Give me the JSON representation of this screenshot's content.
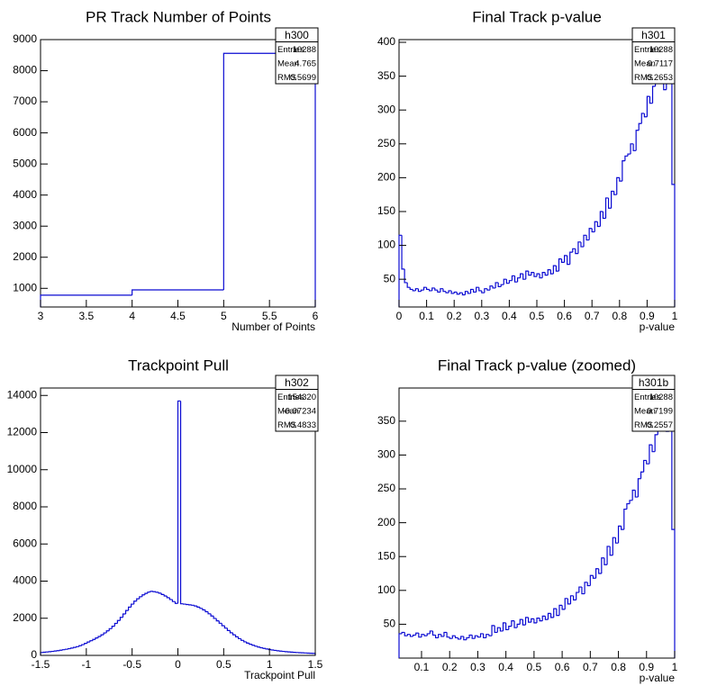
{
  "chart_data": [
    {
      "type": "histogram",
      "title": "PR Track Number of Points",
      "xlabel": "Number of Points",
      "bins": [
        3,
        4,
        5,
        6
      ],
      "values": [
        780,
        950,
        8558
      ],
      "color": "#0a0ad2",
      "xlim": [
        3,
        6
      ],
      "xticks": [
        3,
        3.5,
        4,
        4.5,
        5,
        5.5,
        6
      ],
      "ylim": [
        400,
        9000
      ],
      "yticks": [
        1000,
        2000,
        3000,
        4000,
        5000,
        6000,
        7000,
        8000,
        9000
      ],
      "stats": {
        "title": "h300",
        "rows": [
          [
            "Entries",
            10288
          ],
          [
            "Mean",
            4.765
          ],
          [
            "RMS",
            0.5699
          ]
        ]
      }
    },
    {
      "type": "histogram",
      "title": "Final Track p-value",
      "xlabel": "p-value",
      "bins": [
        0,
        0.01,
        0.02,
        0.03,
        0.04,
        0.05,
        0.06,
        0.07,
        0.08,
        0.09,
        0.1,
        0.11,
        0.12,
        0.13,
        0.14,
        0.15,
        0.16,
        0.17,
        0.18,
        0.19,
        0.2,
        0.21,
        0.22,
        0.23,
        0.24,
        0.25,
        0.26,
        0.27,
        0.28,
        0.29,
        0.3,
        0.31,
        0.32,
        0.33,
        0.34,
        0.35,
        0.36,
        0.37,
        0.38,
        0.39,
        0.4,
        0.41,
        0.42,
        0.43,
        0.44,
        0.45,
        0.46,
        0.47,
        0.48,
        0.49,
        0.5,
        0.51,
        0.52,
        0.53,
        0.54,
        0.55,
        0.56,
        0.57,
        0.58,
        0.59,
        0.6,
        0.61,
        0.62,
        0.63,
        0.64,
        0.65,
        0.66,
        0.67,
        0.68,
        0.69,
        0.7,
        0.71,
        0.72,
        0.73,
        0.74,
        0.75,
        0.76,
        0.77,
        0.78,
        0.79,
        0.8,
        0.81,
        0.82,
        0.83,
        0.84,
        0.85,
        0.86,
        0.87,
        0.88,
        0.89,
        0.9,
        0.91,
        0.92,
        0.93,
        0.94,
        0.95,
        0.96,
        0.97,
        0.98,
        0.99,
        1
      ],
      "values": [
        115,
        65,
        45,
        38,
        35,
        33,
        36,
        32,
        34,
        38,
        35,
        33,
        37,
        34,
        31,
        36,
        32,
        30,
        33,
        29,
        31,
        28,
        30,
        27,
        32,
        29,
        35,
        31,
        38,
        33,
        30,
        36,
        34,
        40,
        37,
        45,
        39,
        42,
        50,
        44,
        48,
        55,
        46,
        52,
        58,
        50,
        62,
        56,
        60,
        54,
        58,
        52,
        60,
        56,
        64,
        58,
        70,
        62,
        80,
        75,
        85,
        72,
        90,
        95,
        88,
        105,
        98,
        115,
        108,
        125,
        120,
        135,
        128,
        150,
        140,
        170,
        155,
        180,
        175,
        200,
        195,
        225,
        232,
        235,
        250,
        240,
        270,
        280,
        295,
        290,
        320,
        310,
        335,
        340,
        375,
        350,
        330,
        390,
        400,
        190
      ],
      "color": "#0a0ad2",
      "xlim": [
        0,
        1
      ],
      "xticks": [
        0,
        0.1,
        0.2,
        0.3,
        0.4,
        0.5,
        0.6,
        0.7,
        0.8,
        0.9,
        1
      ],
      "ylim": [
        9,
        404
      ],
      "yticks": [
        50,
        100,
        150,
        200,
        250,
        300,
        350,
        400
      ],
      "stats": {
        "title": "h301",
        "rows": [
          [
            "Entries",
            10288
          ],
          [
            "Mean",
            0.7117
          ],
          [
            "RMS",
            0.2653
          ]
        ]
      }
    },
    {
      "type": "histogram",
      "title": "Trackpoint Pull",
      "xlabel": "Trackpoint Pull",
      "bins": [
        -1.5,
        -1.47,
        -1.44,
        -1.41,
        -1.38,
        -1.35,
        -1.32,
        -1.29,
        -1.26,
        -1.23,
        -1.2,
        -1.17,
        -1.14,
        -1.11,
        -1.08,
        -1.05,
        -1.02,
        -0.99,
        -0.96,
        -0.93,
        -0.9,
        -0.87,
        -0.84,
        -0.81,
        -0.78,
        -0.75,
        -0.72,
        -0.69,
        -0.66,
        -0.63,
        -0.6,
        -0.57,
        -0.54,
        -0.51,
        -0.48,
        -0.45,
        -0.42,
        -0.39,
        -0.36,
        -0.33,
        -0.3,
        -0.27,
        -0.24,
        -0.21,
        -0.18,
        -0.15,
        -0.12,
        -0.09,
        -0.06,
        -0.03,
        0,
        0.03,
        0.06,
        0.09,
        0.12,
        0.15,
        0.18,
        0.21,
        0.24,
        0.27,
        0.3,
        0.33,
        0.36,
        0.39,
        0.42,
        0.45,
        0.48,
        0.51,
        0.54,
        0.57,
        0.6,
        0.63,
        0.66,
        0.69,
        0.72,
        0.75,
        0.78,
        0.81,
        0.84,
        0.87,
        0.9,
        0.93,
        0.96,
        0.99,
        1.02,
        1.05,
        1.08,
        1.11,
        1.14,
        1.17,
        1.2,
        1.23,
        1.26,
        1.29,
        1.32,
        1.35,
        1.38,
        1.41,
        1.44,
        1.47,
        1.5
      ],
      "values": [
        155,
        170,
        185,
        200,
        215,
        235,
        255,
        280,
        305,
        330,
        360,
        395,
        430,
        470,
        520,
        580,
        650,
        720,
        790,
        860,
        940,
        1020,
        1110,
        1210,
        1320,
        1440,
        1570,
        1720,
        1880,
        2050,
        2230,
        2420,
        2600,
        2760,
        2920,
        3050,
        3160,
        3260,
        3340,
        3410,
        3450,
        3430,
        3400,
        3350,
        3280,
        3200,
        3110,
        3010,
        2900,
        2800,
        13700,
        2780,
        2760,
        2740,
        2720,
        2700,
        2660,
        2600,
        2530,
        2450,
        2350,
        2240,
        2120,
        1990,
        1860,
        1730,
        1600,
        1470,
        1340,
        1220,
        1110,
        1000,
        900,
        810,
        730,
        660,
        600,
        545,
        495,
        450,
        410,
        375,
        345,
        315,
        290,
        270,
        250,
        232,
        215,
        200,
        188,
        176,
        165,
        155,
        146,
        138,
        130,
        123,
        116,
        110
      ],
      "color": "#0a0ad2",
      "xlim": [
        -1.5,
        1.5
      ],
      "xticks": [
        -1.5,
        -1,
        -0.5,
        0,
        0.5,
        1,
        1.5
      ],
      "ylim": [
        0,
        14400
      ],
      "yticks": [
        0,
        2000,
        4000,
        6000,
        8000,
        10000,
        12000,
        14000
      ],
      "stats": {
        "title": "h302",
        "rows": [
          [
            "Entries",
            154320
          ],
          [
            "Mean",
            -0.07234
          ],
          [
            "RMS",
            0.4833
          ]
        ]
      }
    },
    {
      "type": "histogram",
      "title": "Final Track p-value (zoomed)",
      "xlabel": "p-value",
      "bins": [
        0.02,
        0.03,
        0.04,
        0.05,
        0.06,
        0.07,
        0.08,
        0.09,
        0.1,
        0.11,
        0.12,
        0.13,
        0.14,
        0.15,
        0.16,
        0.17,
        0.18,
        0.19,
        0.2,
        0.21,
        0.22,
        0.23,
        0.24,
        0.25,
        0.26,
        0.27,
        0.28,
        0.29,
        0.3,
        0.31,
        0.32,
        0.33,
        0.34,
        0.35,
        0.36,
        0.37,
        0.38,
        0.39,
        0.4,
        0.41,
        0.42,
        0.43,
        0.44,
        0.45,
        0.46,
        0.47,
        0.48,
        0.49,
        0.5,
        0.51,
        0.52,
        0.53,
        0.54,
        0.55,
        0.56,
        0.57,
        0.58,
        0.59,
        0.6,
        0.61,
        0.62,
        0.63,
        0.64,
        0.65,
        0.66,
        0.67,
        0.68,
        0.69,
        0.7,
        0.71,
        0.72,
        0.73,
        0.74,
        0.75,
        0.76,
        0.77,
        0.78,
        0.79,
        0.8,
        0.81,
        0.82,
        0.83,
        0.84,
        0.85,
        0.86,
        0.87,
        0.88,
        0.89,
        0.9,
        0.91,
        0.92,
        0.93,
        0.94,
        0.95,
        0.96,
        0.97,
        0.98,
        0.99,
        1
      ],
      "values": [
        36,
        38,
        33,
        35,
        32,
        34,
        37,
        31,
        35,
        33,
        36,
        40,
        34,
        30,
        35,
        32,
        38,
        31,
        29,
        33,
        30,
        28,
        32,
        27,
        30,
        34,
        29,
        33,
        31,
        36,
        30,
        35,
        33,
        48,
        38,
        45,
        40,
        52,
        42,
        47,
        55,
        45,
        50,
        57,
        49,
        60,
        53,
        58,
        52,
        59,
        55,
        62,
        57,
        66,
        60,
        73,
        63,
        78,
        72,
        88,
        80,
        92,
        86,
        97,
        105,
        95,
        112,
        107,
        122,
        118,
        132,
        125,
        148,
        138,
        165,
        152,
        178,
        170,
        195,
        190,
        220,
        228,
        233,
        248,
        238,
        265,
        275,
        292,
        287,
        315,
        305,
        330,
        345,
        370,
        355,
        335,
        395,
        190
      ],
      "color": "#0a0ad2",
      "xlim": [
        0.02,
        1
      ],
      "xticks": [
        0.1,
        0.2,
        0.3,
        0.4,
        0.5,
        0.6,
        0.7,
        0.8,
        0.9,
        1
      ],
      "ylim": [
        0,
        399
      ],
      "yticks": [
        50,
        100,
        150,
        200,
        250,
        300,
        350
      ],
      "stats": {
        "title": "h301b",
        "rows": [
          [
            "Entries",
            10288
          ],
          [
            "Mean",
            0.7199
          ],
          [
            "RMS",
            0.2557
          ]
        ]
      }
    }
  ]
}
